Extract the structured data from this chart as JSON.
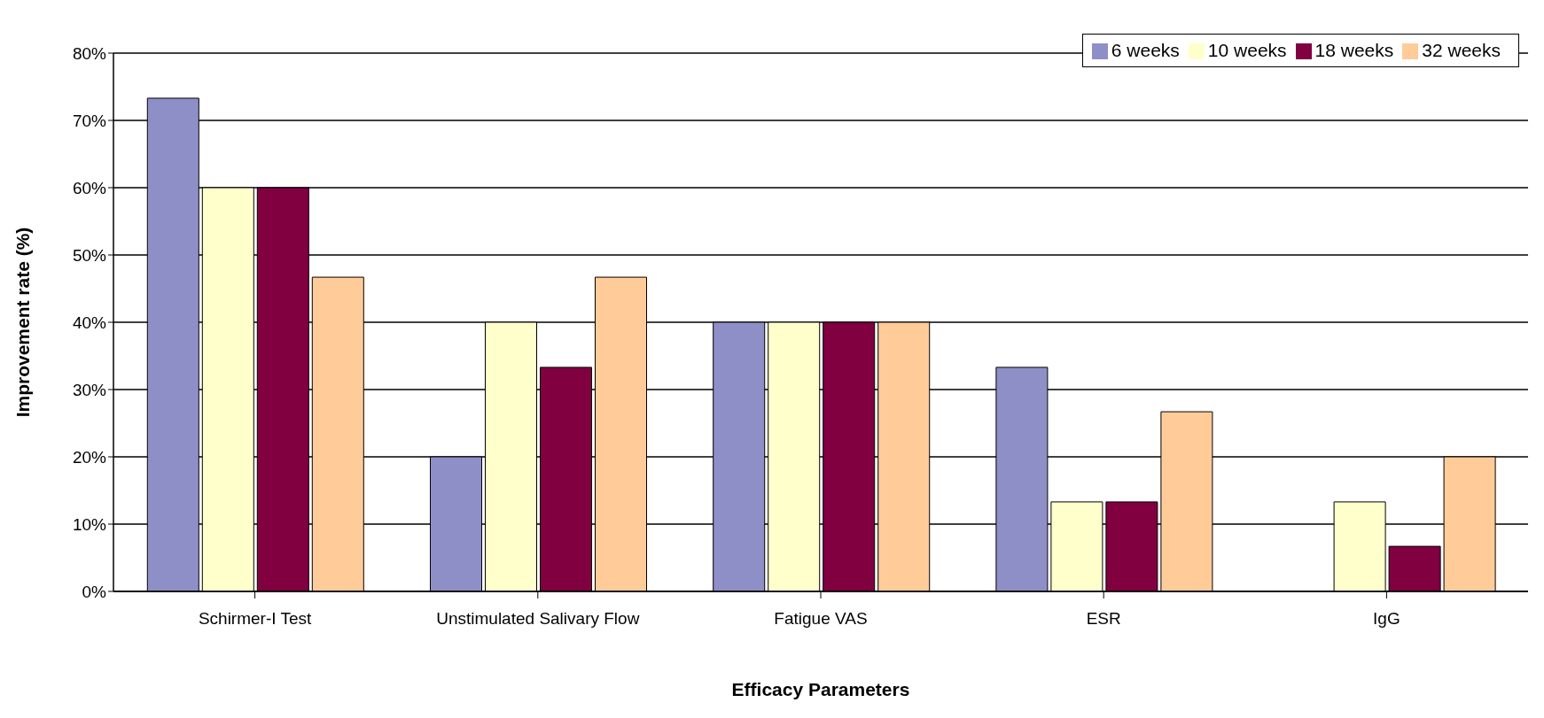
{
  "chart_data": {
    "type": "bar",
    "xlabel": "Efficacy Parameters",
    "ylabel": "Improvement rate (%)",
    "categories": [
      "Schirmer-I Test",
      "Unstimulated Salivary Flow",
      "Fatigue VAS",
      "ESR",
      "IgG"
    ],
    "series": [
      {
        "name": "6 weeks",
        "color": "#8f8fc8",
        "values": [
          73.3,
          20,
          40,
          33.3,
          0
        ]
      },
      {
        "name": "10 weeks",
        "color": "#ffffcc",
        "values": [
          60,
          40,
          40,
          13.3,
          13.3
        ]
      },
      {
        "name": "18 weeks",
        "color": "#800040",
        "values": [
          60,
          33.3,
          40,
          13.3,
          6.7
        ]
      },
      {
        "name": "32 weeks",
        "color": "#ffcc99",
        "values": [
          46.7,
          46.7,
          40,
          26.7,
          20
        ]
      }
    ],
    "ylim": [
      0,
      80
    ],
    "yticks": [
      {
        "value": 0,
        "label": "0%"
      },
      {
        "value": 10,
        "label": "10%"
      },
      {
        "value": 20,
        "label": "20%"
      },
      {
        "value": 30,
        "label": "30%"
      },
      {
        "value": 40,
        "label": "40%"
      },
      {
        "value": 50,
        "label": "50%"
      },
      {
        "value": 60,
        "label": "60%"
      },
      {
        "value": 70,
        "label": "70%"
      },
      {
        "value": 80,
        "label": "80%"
      }
    ],
    "grid": "y",
    "legend": "top right"
  }
}
